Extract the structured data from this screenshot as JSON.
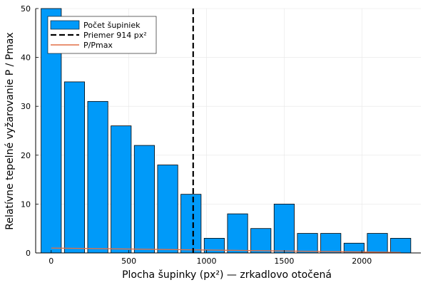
{
  "chart_data": {
    "type": "bar",
    "xlabel": "Plocha šupinky (px²) — zrkadlovo otočená",
    "ylabel": "Relatívne tepelné vyžarovanie P / Pmax",
    "xlim": [
      -100,
      2380
    ],
    "ylim": [
      0,
      50
    ],
    "xticks": [
      0,
      500,
      1000,
      1500,
      2000
    ],
    "yticks": [
      0,
      10,
      20,
      30,
      40,
      50
    ],
    "grid": true,
    "legend_position": "top-left",
    "bar_width": 130,
    "bars": {
      "name": "Počet šupiniek",
      "color": "#009af9",
      "x": [
        0,
        150,
        300,
        450,
        600,
        750,
        900,
        1050,
        1200,
        1350,
        1500,
        1650,
        1800,
        1950,
        2100,
        2250
      ],
      "values": [
        50,
        35,
        31,
        26,
        22,
        18,
        12,
        3,
        8,
        5,
        10,
        4,
        4,
        2,
        4,
        3
      ]
    },
    "vline": {
      "name": "Priemer 914 px²",
      "x": 914,
      "color": "#000000"
    },
    "line": {
      "name": "P/Pmax",
      "color": "#e26f46",
      "x": [
        0,
        2250
      ],
      "values": [
        1.0,
        0.1
      ]
    }
  }
}
